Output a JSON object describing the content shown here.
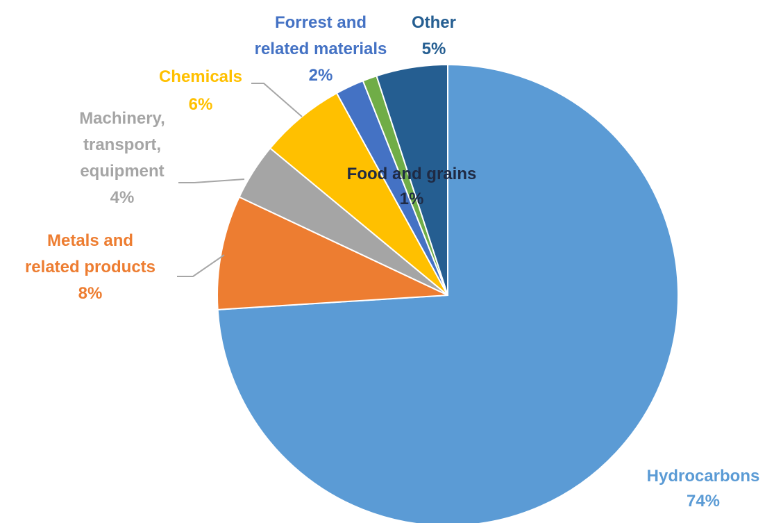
{
  "chart_data": {
    "type": "pie",
    "slices": [
      {
        "label_lines": [
          "Hydrocarbons"
        ],
        "value_label": "74%",
        "value": 74,
        "color": "#5b9bd5",
        "text_color": "#5b9bd5"
      },
      {
        "label_lines": [
          "Metals and",
          "related products"
        ],
        "value_label": "8%",
        "value": 8,
        "color": "#ed7d31",
        "text_color": "#ed7d31"
      },
      {
        "label_lines": [
          "Machinery,",
          "transport,",
          "equipment"
        ],
        "value_label": "4%",
        "value": 4,
        "color": "#a5a5a5",
        "text_color": "#a5a5a5"
      },
      {
        "label_lines": [
          "Chemicals"
        ],
        "value_label": "6%",
        "value": 6,
        "color": "#ffc000",
        "text_color": "#ffc000"
      },
      {
        "label_lines": [
          "Forrest and",
          "related materials"
        ],
        "value_label": "2%",
        "value": 2,
        "color": "#4472c4",
        "text_color": "#4472c4"
      },
      {
        "label_lines": [
          "Food and grains"
        ],
        "value_label": "1%",
        "value": 1,
        "color": "#70ad47",
        "text_color": "#1f2a44"
      },
      {
        "label_lines": [
          "Other"
        ],
        "value_label": "5%",
        "value": 5,
        "color": "#255e91",
        "text_color": "#255e91"
      }
    ]
  }
}
